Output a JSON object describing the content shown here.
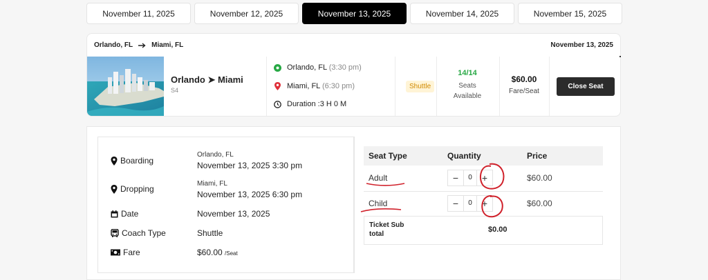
{
  "date_tabs": [
    {
      "label": "November 11, 2025",
      "active": false
    },
    {
      "label": "November 12, 2025",
      "active": false
    },
    {
      "label": "November 13, 2025",
      "active": true
    },
    {
      "label": "November 14, 2025",
      "active": false
    },
    {
      "label": "November 15, 2025",
      "active": false
    }
  ],
  "trip": {
    "from": "Orlando, FL",
    "arrow_icon": "arrow-right",
    "to": "Miami, FL",
    "date": "November 13, 2025",
    "bus_name": "Orlando ➤ Miami",
    "bus_code": "S4",
    "boarding_place": "Orlando, FL",
    "boarding_time": "(3:30 pm)",
    "dropping_place": "Miami, FL",
    "dropping_time": "(6:30 pm)",
    "duration": "Duration :3 H 0 M",
    "coach_badge": "Shuttle",
    "seats_count": "14/14",
    "seats_label_1": "Seats",
    "seats_label_2": "Available",
    "fare_amount": "$60.00",
    "fare_label": "Fare/Seat",
    "close_button": "Close Seat"
  },
  "details": {
    "boarding_label": "Boarding",
    "boarding_place": "Orlando, FL",
    "boarding_datetime": "November 13, 2025 3:30 pm",
    "dropping_label": "Dropping",
    "dropping_place": "Miami, FL",
    "dropping_datetime": "November 13, 2025 6:30 pm",
    "date_label": "Date",
    "date_value": "November 13, 2025",
    "coach_label": "Coach Type",
    "coach_value": "Shuttle",
    "fare_label": "Fare",
    "fare_value": "$60.00",
    "fare_unit": "/Seat"
  },
  "seat_table": {
    "headers": {
      "type": "Seat Type",
      "quantity": "Quantity",
      "price": "Price"
    },
    "rows": [
      {
        "type": "Adult",
        "quantity": "0",
        "price": "$60.00"
      },
      {
        "type": "Child",
        "quantity": "0",
        "price": "$60.00"
      }
    ],
    "subtotal_label": "Ticket Sub total",
    "subtotal_value": "$0.00"
  },
  "colors": {
    "accent": "#000000",
    "available": "#27a844",
    "badge_bg": "#fff4d6",
    "badge_text": "#d08a00",
    "annotation": "#d0202a"
  }
}
